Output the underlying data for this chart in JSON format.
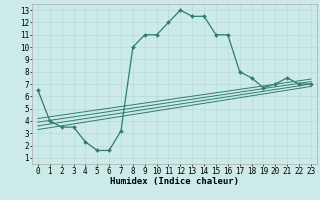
{
  "xlabel": "Humidex (Indice chaleur)",
  "bg_color": "#cceae7",
  "line_color": "#2e7d6e",
  "xlim": [
    -0.5,
    23.5
  ],
  "ylim": [
    0.5,
    13.5
  ],
  "xticks": [
    0,
    1,
    2,
    3,
    4,
    5,
    6,
    7,
    8,
    9,
    10,
    11,
    12,
    13,
    14,
    15,
    16,
    17,
    18,
    19,
    20,
    21,
    22,
    23
  ],
  "yticks": [
    1,
    2,
    3,
    4,
    5,
    6,
    7,
    8,
    9,
    10,
    11,
    12,
    13
  ],
  "main_x": [
    0,
    1,
    2,
    3,
    4,
    5,
    6,
    7,
    8,
    9,
    10,
    11,
    12,
    13,
    14,
    15,
    16,
    17,
    18,
    19,
    20,
    21,
    22,
    23
  ],
  "main_y": [
    6.5,
    4.0,
    3.5,
    3.5,
    2.3,
    1.6,
    1.6,
    3.2,
    10.0,
    11.0,
    11.0,
    12.0,
    13.0,
    12.5,
    12.5,
    11.0,
    11.0,
    8.0,
    7.5,
    6.7,
    7.0,
    7.5,
    7.0,
    7.0
  ],
  "trend_lines": [
    {
      "x": [
        0,
        23
      ],
      "y": [
        3.3,
        6.8
      ]
    },
    {
      "x": [
        0,
        23
      ],
      "y": [
        3.6,
        7.0
      ]
    },
    {
      "x": [
        0,
        23
      ],
      "y": [
        3.9,
        7.2
      ]
    },
    {
      "x": [
        0,
        23
      ],
      "y": [
        4.2,
        7.4
      ]
    }
  ],
  "grid_color": "#b8dcd8",
  "font_color": "#000000",
  "font_size_label": 6.5,
  "font_size_tick": 5.5
}
